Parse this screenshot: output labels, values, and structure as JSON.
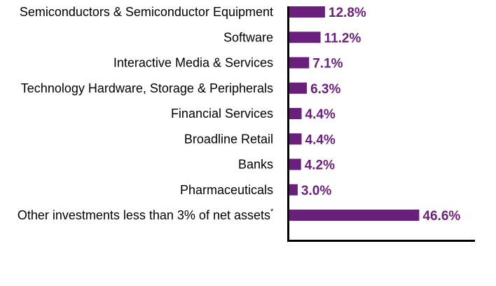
{
  "chart_data": {
    "type": "bar",
    "orientation": "horizontal",
    "categories": [
      "Semiconductors & Semiconductor Equipment",
      "Software",
      "Interactive Media & Services",
      "Technology Hardware, Storage & Peripherals",
      "Financial Services",
      "Broadline Retail",
      "Banks",
      "Pharmaceuticals",
      "Other investments less than 3% of net assets"
    ],
    "category_footnote_marks": [
      "",
      "",
      "",
      "",
      "",
      "",
      "",
      "",
      "*"
    ],
    "values": [
      12.8,
      11.2,
      7.1,
      6.3,
      4.4,
      4.4,
      4.2,
      3.0,
      46.6
    ],
    "value_labels": [
      "12.8%",
      "11.2%",
      "7.1%",
      "6.3%",
      "4.4%",
      "4.4%",
      "4.2%",
      "3.0%",
      "46.6%"
    ],
    "bar_color": "#6b1f7c",
    "label_color": "#6b1f7c",
    "xlim": [
      0,
      47
    ],
    "grid": false,
    "legend": false,
    "axes": "left and bottom lines only, no tick labels"
  }
}
